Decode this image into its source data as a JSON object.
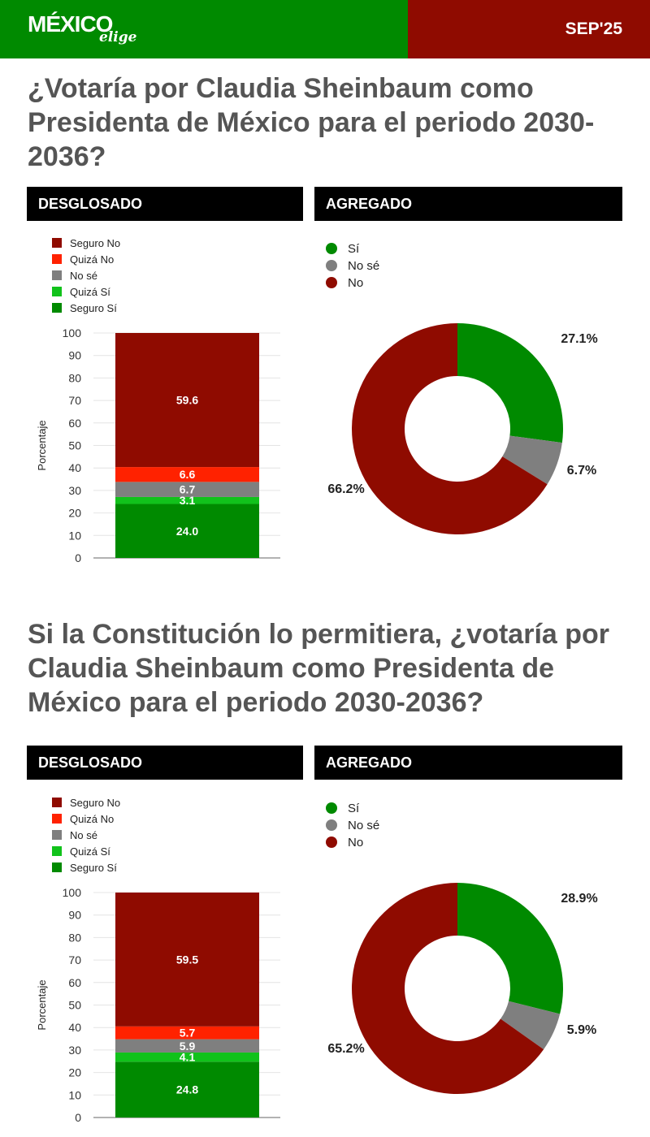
{
  "header": {
    "logo_main": "MÉXICO",
    "logo_sub": "elige",
    "date": "SEP'25"
  },
  "colors": {
    "green": "#008a00",
    "dark_red": "#8f0b00",
    "seguro_no": "#8f0b00",
    "quiza_no": "#ff2200",
    "no_se": "#7f7f7f",
    "quiza_si": "#11c21b",
    "seguro_si": "#008a00"
  },
  "sections": [
    {
      "question": "¿Votaría por Claudia Sheinbaum como Presidenta de México para el periodo 2030-2036?",
      "left_header": "DESGLOSADO",
      "right_header": "AGREGADO"
    },
    {
      "question": "Si la Constitución lo permitiera, ¿votaría por Claudia Sheinbaum como Presidenta de México para el periodo 2030-2036?",
      "left_header": "DESGLOSADO",
      "right_header": "AGREGADO"
    }
  ],
  "chart_data": [
    {
      "type": "bar",
      "stacked": true,
      "ylabel": "Porcentaje",
      "ylim": [
        0,
        100
      ],
      "yticks": [
        "0",
        "10",
        "20",
        "30",
        "40",
        "50",
        "60",
        "70",
        "80",
        "90",
        "100"
      ],
      "grid": true,
      "legend": "top-left",
      "series": [
        {
          "name": "Seguro Sí",
          "value": 24.0,
          "label": "24.0"
        },
        {
          "name": "Quizá Sí",
          "value": 3.1,
          "label": "3.1"
        },
        {
          "name": "No sé",
          "value": 6.7,
          "label": "6.7"
        },
        {
          "name": "Quizá No",
          "value": 6.6,
          "label": "6.6"
        },
        {
          "name": "Seguro No",
          "value": 59.6,
          "label": "59.6"
        }
      ],
      "legend_entries": [
        "Seguro No",
        "Quizá No",
        "No sé",
        "Quizá Sí",
        "Seguro Sí"
      ]
    },
    {
      "type": "pie",
      "donut": true,
      "legend": "top-left",
      "legend_entries": [
        "Sí",
        "No sé",
        "No"
      ],
      "slices": [
        {
          "name": "Sí",
          "value": 27.1,
          "label": "27.1%"
        },
        {
          "name": "No sé",
          "value": 6.7,
          "label": "6.7%"
        },
        {
          "name": "No",
          "value": 66.2,
          "label": "66.2%"
        }
      ]
    },
    {
      "type": "bar",
      "stacked": true,
      "ylabel": "Porcentaje",
      "ylim": [
        0,
        100
      ],
      "yticks": [
        "0",
        "10",
        "20",
        "30",
        "40",
        "50",
        "60",
        "70",
        "80",
        "90",
        "100"
      ],
      "grid": true,
      "legend": "top-left",
      "series": [
        {
          "name": "Seguro Sí",
          "value": 24.8,
          "label": "24.8"
        },
        {
          "name": "Quizá Sí",
          "value": 4.1,
          "label": "4.1"
        },
        {
          "name": "No sé",
          "value": 5.9,
          "label": "5.9"
        },
        {
          "name": "Quizá No",
          "value": 5.7,
          "label": "5.7"
        },
        {
          "name": "Seguro No",
          "value": 59.5,
          "label": "59.5"
        }
      ],
      "legend_entries": [
        "Seguro No",
        "Quizá No",
        "No sé",
        "Quizá Sí",
        "Seguro Sí"
      ]
    },
    {
      "type": "pie",
      "donut": true,
      "legend": "top-left",
      "legend_entries": [
        "Sí",
        "No sé",
        "No"
      ],
      "slices": [
        {
          "name": "Sí",
          "value": 28.9,
          "label": "28.9%"
        },
        {
          "name": "No sé",
          "value": 5.9,
          "label": "5.9%"
        },
        {
          "name": "No",
          "value": 65.2,
          "label": "65.2%"
        }
      ]
    }
  ]
}
